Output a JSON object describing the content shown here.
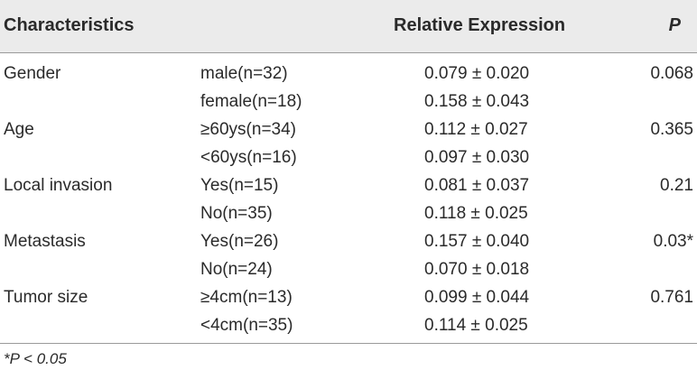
{
  "header": {
    "characteristics": "Characteristics",
    "relative_expression": "Relative Expression",
    "p": "P"
  },
  "rows": [
    {
      "char": "Gender",
      "sub": "male(n=32)",
      "rel": "0.079 ± 0.020",
      "p": "0.068"
    },
    {
      "char": "",
      "sub": "female(n=18)",
      "rel": "0.158 ± 0.043",
      "p": ""
    },
    {
      "char": "Age",
      "sub": "≥60ys(n=34)",
      "rel": "0.112 ± 0.027",
      "p": "0.365"
    },
    {
      "char": "",
      "sub": "<60ys(n=16)",
      "rel": "0.097 ± 0.030",
      "p": ""
    },
    {
      "char": "Local invasion",
      "sub": "Yes(n=15)",
      "rel": "0.081 ± 0.037",
      "p": "0.21"
    },
    {
      "char": "",
      "sub": "No(n=35)",
      "rel": "0.118 ± 0.025",
      "p": ""
    },
    {
      "char": "Metastasis",
      "sub": "Yes(n=26)",
      "rel": "0.157 ± 0.040",
      "p": "0.03*"
    },
    {
      "char": "",
      "sub": "No(n=24)",
      "rel": "0.070 ± 0.018",
      "p": ""
    },
    {
      "char": "Tumor size",
      "sub": "≥4cm(n=13)",
      "rel": "0.099 ± 0.044",
      "p": "0.761"
    },
    {
      "char": "",
      "sub": "<4cm(n=35)",
      "rel": "0.114 ± 0.025",
      "p": ""
    }
  ],
  "footnote": "*P < 0.05"
}
